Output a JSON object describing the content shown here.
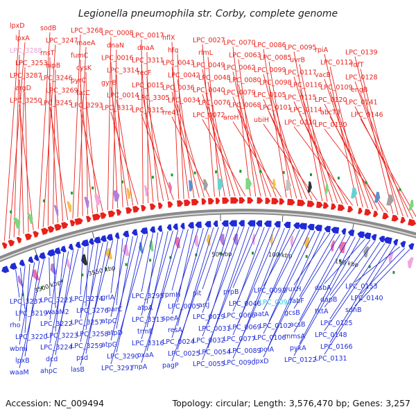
{
  "title": "Legionella pneumophila str. Corby, complete genome",
  "footer": {
    "accession": "Accession: NC_009494",
    "summary": "Topology: circular; Length: 3,576,470 bp; Genes: 3,257"
  },
  "colors": {
    "forward_strand": "#e8211b",
    "reverse_strand": "#1f2bd6",
    "highlight_pink": "#e9a0d6",
    "highlight_cyan": "#33c3e0",
    "backbone": "#8a8a8a"
  },
  "position_ticks": [
    "3500 kbp",
    "3550 kbp",
    "50 kbp",
    "100 kbp",
    "150 kbp"
  ],
  "forward_genes": [
    "lpxD",
    "lpxA",
    "LPC_3288",
    "LPC_3253",
    "LPC_3287",
    "argD",
    "LPC_3250",
    "sodB",
    "LPC_3247",
    "rnsT",
    "hipB",
    "LPC_3246",
    "LPC_3269",
    "LPC_3245",
    "LPC_3268",
    "maeA",
    "fumC",
    "cysK",
    "pyrC",
    "tatC",
    "LPC_3293",
    "LPC_0008",
    "dnaN",
    "LPC_0016",
    "LPC_3314",
    "gyrB",
    "LPC_0014",
    "LPC_3312",
    "LPC_0017",
    "dnaA",
    "LPC_3311",
    "recF",
    "LPC_0015",
    "LPC_3305",
    "LPC_3315",
    "hflX",
    "hfq",
    "LPC_0043",
    "LPC_0042",
    "LPC_0036",
    "LPC_0034",
    "rre41",
    "LPC_0027",
    "rlmL",
    "LPC_0049",
    "LPC_0048",
    "LPC_0040",
    "LPC_0076",
    "LPC_0072",
    "LPC_0070",
    "LPC_0063",
    "LPC_0062",
    "LPC_0080",
    "LPC_0079",
    "LPC_0068",
    "aroH",
    "LPC_0086",
    "LPC_0085",
    "LPC_0099",
    "LPC_0098",
    "LPC_0105",
    "LPC_0101",
    "ubiH",
    "LPC_0095",
    "uvrB",
    "LPC_0117",
    "LPC_0116",
    "LPC_0115",
    "LPC_0114",
    "LPC_0110",
    "rpiA",
    "LPC_0112",
    "vacB",
    "LPC_0109",
    "LPC_0120",
    "abcT3",
    "LPC_0130",
    "LPC_0139",
    "fdfT",
    "LPC_0128",
    "engB",
    "LPC_0141",
    "LPC_0146"
  ],
  "reverse_genes": [
    "LPC_3237",
    "LPC_3219",
    "rho",
    "LPC_3220",
    "wbmI",
    "lpxB",
    "waaM",
    "LPC_3221",
    "waaM2",
    "LPC_3222",
    "LPC_3223",
    "LPC_3224",
    "dcd",
    "ahpC",
    "LPC_3274",
    "LPC_3276",
    "LPC_3257",
    "LPC_3258",
    "LPC_3259",
    "psd",
    "lasB",
    "grlA",
    "parC",
    "atpC",
    "atpD",
    "atpG",
    "LPC_3290",
    "LPC_3291",
    "LPC_3295",
    "atpA",
    "LPC_3313",
    "trmE",
    "LPC_3316",
    "oxaA",
    "rnpA",
    "rpmH",
    "LPC_0005",
    "speA",
    "resA",
    "LPC_0024",
    "LPC_0025",
    "pagP",
    "pit",
    "artJ",
    "LPC_0029",
    "LPC_0031",
    "LPC_0032",
    "LPC_0054",
    "LPC_0055",
    "prpB",
    "LPC_0046",
    "LPC_0066",
    "LPC_0069",
    "LPC_0077",
    "LPC_0089",
    "LPC_0090",
    "LPC_0091",
    "LPC_0092",
    "aatA",
    "LPC_0102",
    "LPC_0106",
    "polA",
    "lpxD",
    "yuxH",
    "fabF",
    "gcsB",
    "acsB",
    "mmsA",
    "pykA",
    "LPC_0122",
    "dsbA",
    "dapB",
    "tktA",
    "LPC_0125",
    "LPC_0148",
    "LPC_0166",
    "LPC_0131",
    "LPC_0153",
    "LPC_0140",
    "sdhB"
  ]
}
